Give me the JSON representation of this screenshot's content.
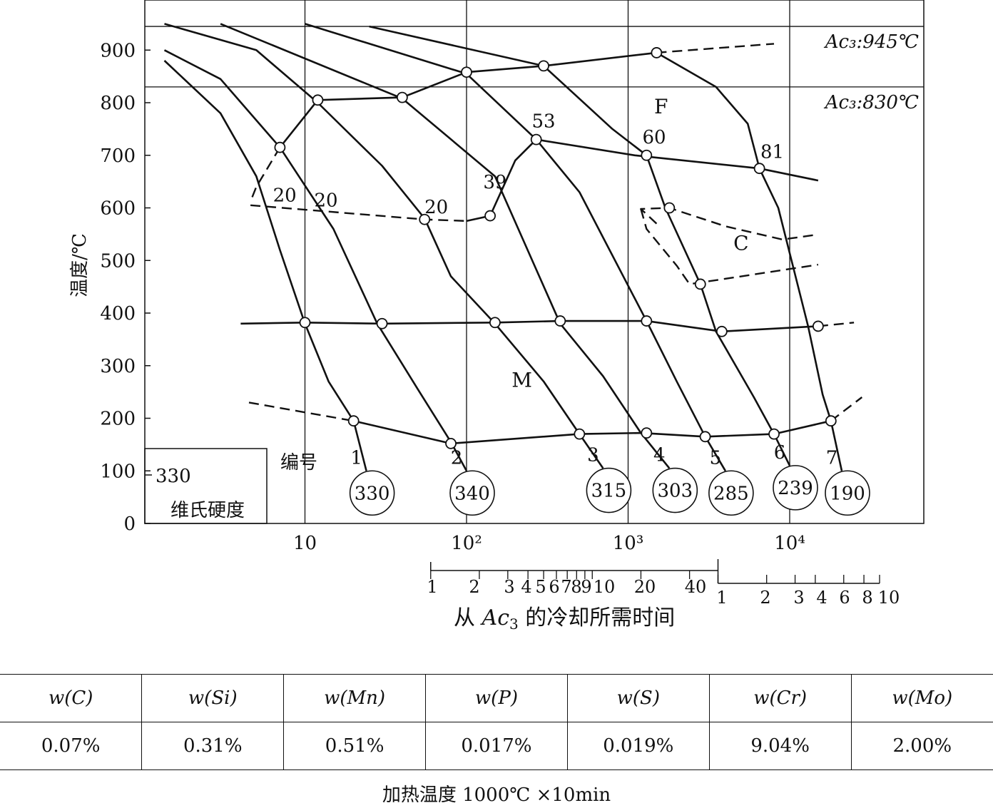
{
  "chart_data": {
    "type": "line",
    "ylabel": "温度/℃",
    "xlabel": "从 Ac3 的冷却所需时间",
    "xscale": "log",
    "xlim": [
      1.35,
      40000
    ],
    "ylim": [
      0,
      980
    ],
    "x_ticks": [
      {
        "value": 10,
        "label": "10"
      },
      {
        "value": 100,
        "label": "10²"
      },
      {
        "value": 1000,
        "label": "10³"
      },
      {
        "value": 10000,
        "label": "10⁴"
      }
    ],
    "y_ticks": [
      0,
      100,
      200,
      300,
      400,
      500,
      600,
      700,
      800,
      900
    ],
    "secondary_axis": {
      "minutes_ticks": [
        "1",
        "2",
        "3",
        "4",
        "5",
        "6",
        "7",
        "8",
        "9",
        "10",
        "20",
        "40"
      ],
      "hours_ticks": [
        "1",
        "2",
        "3",
        "4",
        "6",
        "8",
        "10"
      ]
    },
    "reference_lines": [
      {
        "label": "Ac₃:945℃",
        "y": 945
      },
      {
        "label": "Ac₃:830℃",
        "y": 830
      }
    ],
    "region_labels": [
      "F",
      "C",
      "M"
    ],
    "hardness_legend": {
      "title": "编号",
      "value": "330",
      "label": "维氏硬度"
    },
    "cooling_curves": [
      {
        "name": "1",
        "hardness": "330",
        "points": [
          [
            1.35,
            880
          ],
          [
            3,
            780
          ],
          [
            5,
            660
          ],
          [
            7,
            520
          ],
          [
            10,
            380
          ],
          [
            14,
            270
          ],
          [
            20,
            195
          ],
          [
            24,
            100
          ]
        ]
      },
      {
        "name": "2",
        "hardness": "340",
        "points": [
          [
            1.35,
            900
          ],
          [
            3,
            845
          ],
          [
            7,
            715
          ],
          [
            15,
            560
          ],
          [
            28,
            380
          ],
          [
            50,
            255
          ],
          [
            80,
            155
          ],
          [
            100,
            100
          ]
        ]
      },
      {
        "name": "3",
        "hardness": "315",
        "points": [
          [
            1.35,
            950
          ],
          [
            5,
            900
          ],
          [
            12,
            800
          ],
          [
            30,
            680
          ],
          [
            55,
            580
          ],
          [
            80,
            470
          ],
          [
            150,
            380
          ],
          [
            300,
            270
          ],
          [
            500,
            170
          ],
          [
            700,
            105
          ]
        ]
      },
      {
        "name": "4",
        "hardness": "303",
        "points": [
          [
            3,
            950
          ],
          [
            40,
            808
          ],
          [
            150,
            660
          ],
          [
            380,
            380
          ],
          [
            700,
            280
          ],
          [
            1200,
            172
          ],
          [
            1800,
            105
          ]
        ]
      },
      {
        "name": "5",
        "hardness": "285",
        "points": [
          [
            10,
            950
          ],
          [
            100,
            855
          ],
          [
            270,
            730
          ],
          [
            500,
            630
          ],
          [
            1300,
            385
          ],
          [
            2000,
            270
          ],
          [
            3000,
            165
          ],
          [
            4000,
            100
          ]
        ]
      },
      {
        "name": "6",
        "hardness": "239",
        "points": [
          [
            25,
            945
          ],
          [
            300,
            870
          ],
          [
            800,
            750
          ],
          [
            1300,
            700
          ],
          [
            1700,
            600
          ],
          [
            2800,
            455
          ],
          [
            3500,
            365
          ],
          [
            6000,
            240
          ],
          [
            8000,
            170
          ],
          [
            10000,
            110
          ]
        ]
      },
      {
        "name": "7",
        "hardness": "190",
        "points": [
          [
            1500,
            895
          ],
          [
            3500,
            830
          ],
          [
            5500,
            760
          ],
          [
            6500,
            675
          ],
          [
            8500,
            600
          ],
          [
            13000,
            375
          ],
          [
            16000,
            245
          ],
          [
            18000,
            195
          ],
          [
            21000,
            100
          ]
        ]
      }
    ],
    "curve_annotations": [
      {
        "label": "20",
        "x": 7.5,
        "y": 612
      },
      {
        "label": "20",
        "x": 13.5,
        "y": 603
      },
      {
        "label": "20",
        "x": 65,
        "y": 590
      },
      {
        "label": "39",
        "x": 150,
        "y": 637
      },
      {
        "label": "53",
        "x": 300,
        "y": 753
      },
      {
        "label": "60",
        "x": 1450,
        "y": 723
      },
      {
        "label": "81",
        "x": 7800,
        "y": 695
      }
    ],
    "transformation_lines": {
      "ferrite_start": [
        [
          7,
          715
        ],
        [
          12,
          805
        ],
        [
          40,
          810
        ],
        [
          100,
          858
        ],
        [
          300,
          870
        ],
        [
          1500,
          895
        ]
      ],
      "ferrite_start_ext": [
        [
          1500,
          895
        ],
        [
          8000,
          912
        ]
      ],
      "ferrite_dashed_low": [
        [
          7,
          715
        ],
        [
          5,
          640
        ],
        [
          4.6,
          612
        ]
      ],
      "low_transform": [
        [
          4.6,
          605
        ],
        [
          55,
          578
        ],
        [
          100,
          575
        ],
        [
          140,
          585
        ],
        [
          200,
          690
        ],
        [
          270,
          730
        ],
        [
          1100,
          700
        ],
        [
          6500,
          675
        ],
        [
          15000,
          652
        ]
      ],
      "martensite_start": [
        [
          4,
          380
        ],
        [
          10,
          382
        ],
        [
          30,
          380
        ],
        [
          150,
          382
        ],
        [
          380,
          385
        ],
        [
          1300,
          385
        ],
        [
          3800,
          365
        ],
        [
          15000,
          375
        ]
      ],
      "martensite_start_ext": [
        [
          15000,
          375
        ],
        [
          25000,
          382
        ]
      ],
      "martensite_finish_dashed": [
        [
          4.5,
          230
        ],
        [
          20,
          195
        ]
      ],
      "martensite_finish": [
        [
          20,
          195
        ],
        [
          80,
          152
        ],
        [
          500,
          170
        ],
        [
          1200,
          172
        ],
        [
          3000,
          165
        ],
        [
          8000,
          170
        ],
        [
          18000,
          195
        ]
      ],
      "martensite_finish_ext": [
        [
          18000,
          195
        ],
        [
          28000,
          240
        ]
      ],
      "carbide_region": [
        [
          1500,
          570
        ],
        [
          1200,
          598
        ],
        [
          1800,
          600
        ],
        [
          4000,
          565
        ],
        [
          9000,
          540
        ],
        [
          14000,
          548
        ]
      ],
      "carbide_region_lower": [
        [
          1200,
          598
        ],
        [
          1300,
          560
        ],
        [
          2000,
          490
        ],
        [
          2400,
          455
        ],
        [
          2800,
          458
        ],
        [
          15000,
          492
        ]
      ]
    }
  },
  "composition_table": {
    "headers": [
      "w(C)",
      "w(Si)",
      "w(Mn)",
      "w(P)",
      "w(S)",
      "w(Cr)",
      "w(Mo)"
    ],
    "values": [
      "0.07%",
      "0.31%",
      "0.51%",
      "0.017%",
      "0.019%",
      "9.04%",
      "2.00%"
    ]
  },
  "caption": "加热温度 1000℃ ×10min"
}
